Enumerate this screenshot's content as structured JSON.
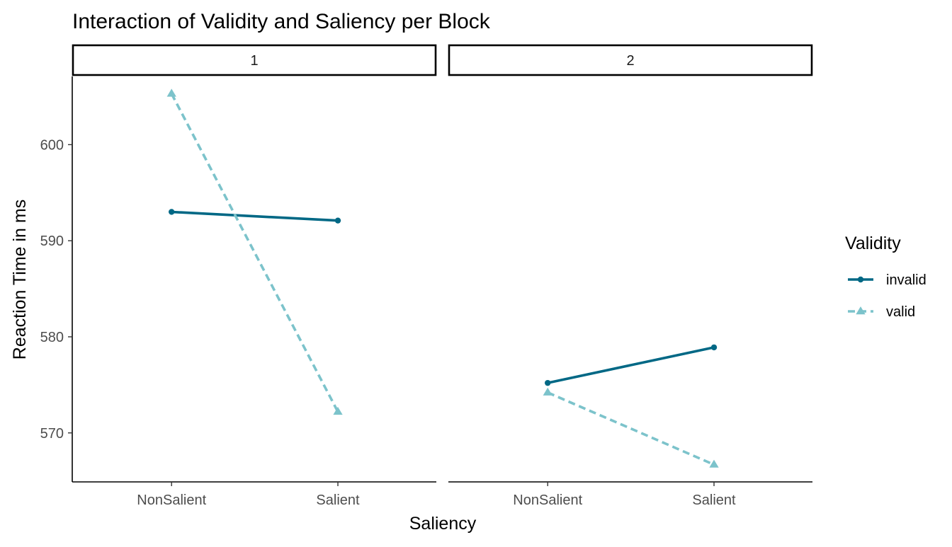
{
  "chart_data": {
    "type": "line",
    "title": "Interaction of Validity and Saliency per Block",
    "xlabel": "Saliency",
    "ylabel": "Reaction Time in ms",
    "categories": [
      "NonSalient",
      "Salient"
    ],
    "facets": [
      {
        "label": "1",
        "series": [
          {
            "name": "invalid",
            "values": [
              593.0,
              592.1
            ]
          },
          {
            "name": "valid",
            "values": [
              605.3,
              572.2
            ]
          }
        ]
      },
      {
        "label": "2",
        "series": [
          {
            "name": "invalid",
            "values": [
              575.2,
              578.9
            ]
          },
          {
            "name": "valid",
            "values": [
              574.2,
              566.7
            ]
          }
        ]
      }
    ],
    "yticks": [
      570,
      580,
      590,
      600
    ],
    "ylim": [
      564.9,
      607.1
    ],
    "grid": false,
    "legend": {
      "title": "Validity",
      "placement": "right",
      "entries": [
        {
          "name": "invalid",
          "color": "#006885",
          "linestyle": "solid",
          "marker": "circle"
        },
        {
          "name": "valid",
          "color": "#7cc3cb",
          "linestyle": "dashed",
          "marker": "triangle"
        }
      ]
    }
  }
}
